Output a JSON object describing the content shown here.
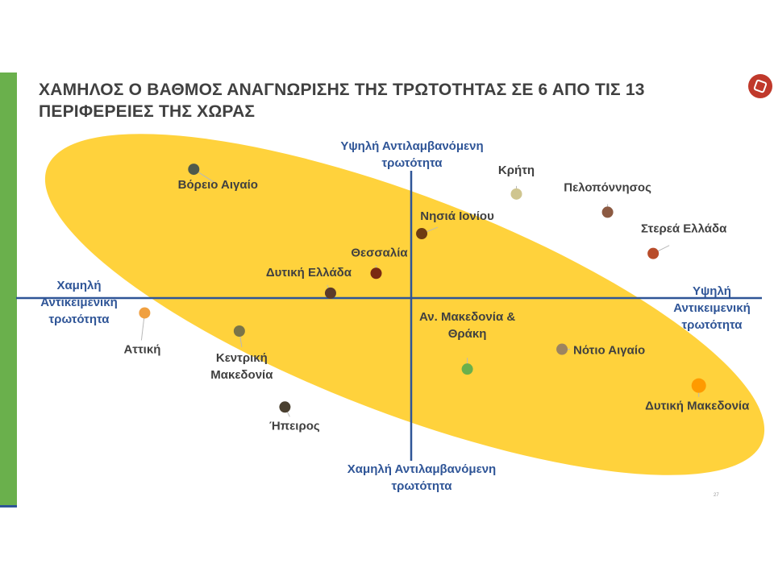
{
  "slide": {
    "title_line1": "ΧΑΜΗΛΟΣ Ο ΒΑΘΜΟΣ ΑΝΑΓΝΩΡΙΣΗΣ ΤΗΣ ΤΡΩΤΟΤΗΤΑΣ ΣΕ 6 ΑΠΟ ΤΙΣ 13",
    "title_line2": "ΠΕΡΙΦΕΡΕΙΕΣ ΤΗΣ ΧΩΡΑΣ",
    "page_number": "27",
    "logo_icon": "organization-logo-icon",
    "accent_green": "#6ab04c",
    "axis_blue": "#2f5597",
    "highlight_yellow": "#ffd23c"
  },
  "chart_data": {
    "type": "scatter",
    "axis_labels": {
      "top": [
        "Υψηλή Αντιλαμβανόμενη",
        "τρωτότητα"
      ],
      "bottom": [
        "Χαμηλή Αντιλαμβανόμενη",
        "τρωτότητα"
      ],
      "left": [
        "Χαμηλή",
        "Αντικειμενική",
        "τρωτότητα"
      ],
      "right": [
        "Υψηλή",
        "Αντικειμενική",
        "τρωτότητα"
      ]
    },
    "xlim": [
      -1,
      1
    ],
    "ylim": [
      -1,
      1
    ],
    "points": [
      {
        "name": [
          "Βόρειο Αιγαίο"
        ],
        "x": -0.62,
        "y": 0.78,
        "color": "#4f5a4c"
      },
      {
        "name": [
          "Κρήτη"
        ],
        "x": 0.3,
        "y": 0.63,
        "color": "#cfc58f"
      },
      {
        "name": [
          "Πελοπόννησος"
        ],
        "x": 0.56,
        "y": 0.52,
        "color": "#8c5a42"
      },
      {
        "name": [
          "Νησιά Ιονίου"
        ],
        "x": 0.03,
        "y": 0.39,
        "color": "#6e3c12"
      },
      {
        "name": [
          "Στερεά Ελλάδα"
        ],
        "x": 0.69,
        "y": 0.27,
        "color": "#b84c2a"
      },
      {
        "name": [
          "Θεσσαλία"
        ],
        "x": -0.1,
        "y": 0.15,
        "color": "#7a2a12"
      },
      {
        "name": [
          "Δυτική Ελλάδα"
        ],
        "x": -0.23,
        "y": 0.03,
        "color": "#5c3a2a"
      },
      {
        "name": [
          "Αττική"
        ],
        "x": -0.76,
        "y": -0.09,
        "color": "#f0a040"
      },
      {
        "name": [
          "Κεντρική",
          "Μακεδονία"
        ],
        "x": -0.49,
        "y": -0.2,
        "color": "#7a7448"
      },
      {
        "name": [
          "Αν. Μακεδονία &",
          "Θράκη"
        ],
        "x": 0.16,
        "y": -0.43,
        "color": "#6ab04c"
      },
      {
        "name": [
          "Νότιο Αιγαίο"
        ],
        "x": 0.43,
        "y": -0.31,
        "color": "#9c8460"
      },
      {
        "name": [
          "Δυτική Μακεδονία"
        ],
        "x": 0.82,
        "y": -0.53,
        "color": "#ff9a00"
      },
      {
        "name": [
          "Ήπειρος"
        ],
        "x": -0.36,
        "y": -0.66,
        "color": "#4a4030"
      }
    ]
  }
}
